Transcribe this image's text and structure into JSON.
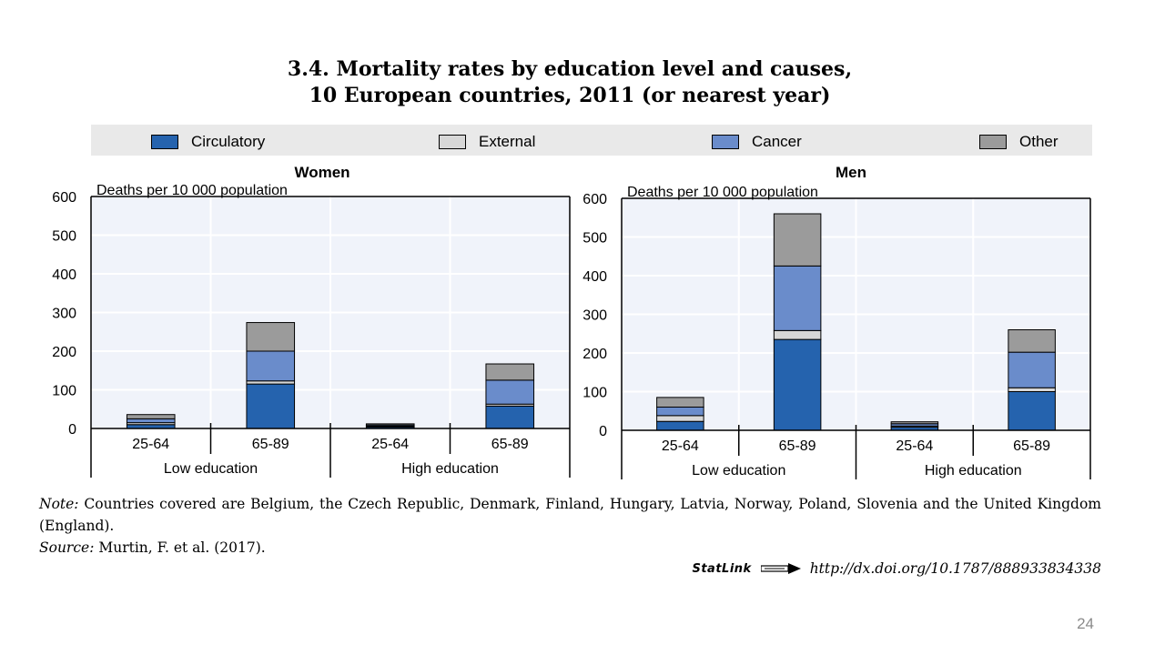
{
  "title_line1": "3.4.  Mortality rates by education level and causes,",
  "title_line2": "10 European countries, 2011 (or nearest year)",
  "note_label": "Note:",
  "note_text": "Countries covered are Belgium, the Czech Republic, Denmark, Finland, Hungary, Latvia, Norway, Poland, Slovenia and the United Kingdom (England).",
  "source_label": "Source:",
  "source_text": "Murtin, F. et al. (2017).",
  "statlink_logo": "StatLink",
  "statlink_url": "http://dx.doi.org/10.1787/888933834338",
  "page_number": "24",
  "legend": [
    {
      "name": "Circulatory",
      "color": "#2563ae"
    },
    {
      "name": "External",
      "color": "#d7d7d7"
    },
    {
      "name": "Cancer",
      "color": "#6a8ccb"
    },
    {
      "name": "Other",
      "color": "#9b9b9b"
    }
  ],
  "chart_data": [
    {
      "type": "bar",
      "stacked": true,
      "title": "Women",
      "ylabel": "Deaths per 10 000 population",
      "ylim": [
        0,
        600
      ],
      "yticks": [
        0,
        100,
        200,
        300,
        400,
        500,
        600
      ],
      "categories": [
        "25-64",
        "65-89",
        "25-64",
        "65-89"
      ],
      "groups": [
        {
          "label": "Low education",
          "categories": [
            "25-64",
            "65-89"
          ]
        },
        {
          "label": "High education",
          "categories": [
            "25-64",
            "65-89"
          ]
        }
      ],
      "series": [
        {
          "name": "Circulatory",
          "values": [
            10,
            115,
            4,
            58
          ]
        },
        {
          "name": "External",
          "values": [
            5,
            8,
            2,
            5
          ]
        },
        {
          "name": "Cancer",
          "values": [
            10,
            77,
            3,
            62
          ]
        },
        {
          "name": "Other",
          "values": [
            11,
            74,
            3,
            42
          ]
        }
      ]
    },
    {
      "type": "bar",
      "stacked": true,
      "title": "Men",
      "ylabel": "Deaths per 10 000 population",
      "ylim": [
        0,
        600
      ],
      "yticks": [
        0,
        100,
        200,
        300,
        400,
        500,
        600
      ],
      "categories": [
        "25-64",
        "65-89",
        "25-64",
        "65-89"
      ],
      "groups": [
        {
          "label": "Low education",
          "categories": [
            "25-64",
            "65-89"
          ]
        },
        {
          "label": "High education",
          "categories": [
            "25-64",
            "65-89"
          ]
        }
      ],
      "series": [
        {
          "name": "Circulatory",
          "values": [
            23,
            235,
            8,
            100
          ]
        },
        {
          "name": "External",
          "values": [
            15,
            23,
            3,
            10
          ]
        },
        {
          "name": "Cancer",
          "values": [
            22,
            167,
            6,
            92
          ]
        },
        {
          "name": "Other",
          "values": [
            25,
            135,
            5,
            58
          ]
        }
      ]
    }
  ]
}
